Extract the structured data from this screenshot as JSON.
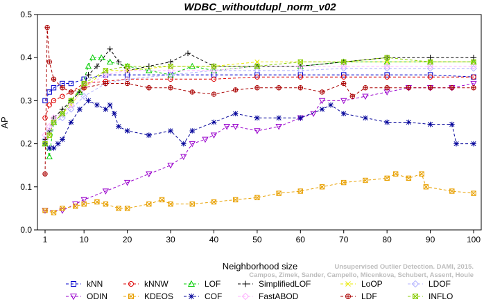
{
  "chart_data": {
    "type": "line",
    "title": "WDBC_withoutdupl_norm_v02",
    "xlabel": "Neighborhood size",
    "ylabel": "AP",
    "xlim": [
      1,
      100
    ],
    "ylim": [
      0,
      0.5
    ],
    "x_ticks": [
      1,
      10,
      20,
      30,
      40,
      50,
      60,
      70,
      80,
      90,
      100
    ],
    "y_ticks": [
      0.0,
      0.1,
      0.2,
      0.3,
      0.4,
      0.5
    ],
    "x_tick_labels": [
      "1",
      "10",
      "20",
      "30",
      "40",
      "50",
      "60",
      "70",
      "80",
      "90",
      "100"
    ],
    "y_tick_labels": [
      "0.0",
      "0.1",
      "0.2",
      "0.3",
      "0.4",
      "0.5"
    ],
    "grid": false,
    "legend_position": "bottom",
    "series": [
      {
        "name": "kNN",
        "color": "#0000cc",
        "marker": "square",
        "points": [
          [
            1,
            0.3
          ],
          [
            2,
            0.32
          ],
          [
            3,
            0.33
          ],
          [
            5,
            0.34
          ],
          [
            7,
            0.34
          ],
          [
            10,
            0.35
          ],
          [
            15,
            0.36
          ],
          [
            20,
            0.36
          ],
          [
            30,
            0.36
          ],
          [
            40,
            0.36
          ],
          [
            50,
            0.36
          ],
          [
            60,
            0.36
          ],
          [
            70,
            0.36
          ],
          [
            80,
            0.36
          ],
          [
            90,
            0.36
          ],
          [
            100,
            0.355
          ]
        ]
      },
      {
        "name": "kNNW",
        "color": "#dd0000",
        "marker": "circle",
        "points": [
          [
            1,
            0.26
          ],
          [
            2,
            0.29
          ],
          [
            3,
            0.3
          ],
          [
            5,
            0.31
          ],
          [
            7,
            0.32
          ],
          [
            10,
            0.34
          ],
          [
            15,
            0.345
          ],
          [
            20,
            0.35
          ],
          [
            30,
            0.35
          ],
          [
            40,
            0.35
          ],
          [
            50,
            0.355
          ],
          [
            60,
            0.355
          ],
          [
            70,
            0.355
          ],
          [
            80,
            0.355
          ],
          [
            90,
            0.355
          ],
          [
            100,
            0.355
          ]
        ]
      },
      {
        "name": "LOF",
        "color": "#00cc00",
        "marker": "triangle-up",
        "points": [
          [
            1,
            0.2
          ],
          [
            2,
            0.17
          ],
          [
            3,
            0.25
          ],
          [
            5,
            0.27
          ],
          [
            7,
            0.3
          ],
          [
            9,
            0.32
          ],
          [
            11,
            0.38
          ],
          [
            12,
            0.4
          ],
          [
            14,
            0.4
          ],
          [
            16,
            0.39
          ],
          [
            20,
            0.38
          ],
          [
            25,
            0.37
          ],
          [
            30,
            0.36
          ],
          [
            35,
            0.38
          ],
          [
            40,
            0.37
          ],
          [
            50,
            0.38
          ],
          [
            60,
            0.38
          ],
          [
            70,
            0.39
          ],
          [
            80,
            0.39
          ],
          [
            90,
            0.39
          ],
          [
            100,
            0.39
          ]
        ]
      },
      {
        "name": "SimplifiedLOF",
        "color": "#000000",
        "marker": "plus",
        "points": [
          [
            1,
            0.21
          ],
          [
            2,
            0.23
          ],
          [
            3,
            0.26
          ],
          [
            5,
            0.28
          ],
          [
            7,
            0.3
          ],
          [
            9,
            0.32
          ],
          [
            11,
            0.36
          ],
          [
            13,
            0.38
          ],
          [
            16,
            0.42
          ],
          [
            18,
            0.39
          ],
          [
            20,
            0.37
          ],
          [
            25,
            0.38
          ],
          [
            30,
            0.39
          ],
          [
            34,
            0.41
          ],
          [
            40,
            0.38
          ],
          [
            50,
            0.38
          ],
          [
            60,
            0.38
          ],
          [
            70,
            0.39
          ],
          [
            80,
            0.4
          ],
          [
            90,
            0.4
          ],
          [
            100,
            0.4
          ]
        ]
      },
      {
        "name": "LoOP",
        "color": "#e8e800",
        "marker": "cross",
        "points": [
          [
            1,
            0.2
          ],
          [
            2,
            0.22
          ],
          [
            3,
            0.25
          ],
          [
            5,
            0.27
          ],
          [
            7,
            0.29
          ],
          [
            10,
            0.33
          ],
          [
            15,
            0.37
          ],
          [
            20,
            0.37
          ],
          [
            30,
            0.38
          ],
          [
            40,
            0.38
          ],
          [
            50,
            0.39
          ],
          [
            60,
            0.39
          ],
          [
            70,
            0.39
          ],
          [
            80,
            0.39
          ],
          [
            90,
            0.39
          ],
          [
            100,
            0.39
          ]
        ]
      },
      {
        "name": "LDOF",
        "color": "#b0b0ff",
        "marker": "diamond",
        "points": [
          [
            1,
            0.21
          ],
          [
            2,
            0.23
          ],
          [
            3,
            0.25
          ],
          [
            5,
            0.26
          ],
          [
            7,
            0.28
          ],
          [
            10,
            0.31
          ],
          [
            15,
            0.34
          ],
          [
            20,
            0.35
          ],
          [
            30,
            0.36
          ],
          [
            40,
            0.37
          ],
          [
            50,
            0.37
          ],
          [
            60,
            0.37
          ],
          [
            70,
            0.375
          ],
          [
            80,
            0.375
          ],
          [
            90,
            0.375
          ],
          [
            100,
            0.375
          ]
        ]
      },
      {
        "name": "ODIN",
        "color": "#9900cc",
        "marker": "triangle-down",
        "points": [
          [
            1,
            0.045
          ],
          [
            5,
            0.045
          ],
          [
            8,
            0.06
          ],
          [
            10,
            0.07
          ],
          [
            15,
            0.09
          ],
          [
            20,
            0.11
          ],
          [
            25,
            0.13
          ],
          [
            30,
            0.15
          ],
          [
            33,
            0.17
          ],
          [
            35,
            0.2
          ],
          [
            38,
            0.21
          ],
          [
            40,
            0.22
          ],
          [
            43,
            0.24
          ],
          [
            45,
            0.24
          ],
          [
            50,
            0.23
          ],
          [
            55,
            0.24
          ],
          [
            60,
            0.26
          ],
          [
            63,
            0.27
          ],
          [
            65,
            0.3
          ],
          [
            70,
            0.3
          ],
          [
            75,
            0.31
          ],
          [
            80,
            0.32
          ],
          [
            85,
            0.33
          ],
          [
            90,
            0.33
          ],
          [
            95,
            0.33
          ],
          [
            100,
            0.34
          ]
        ]
      },
      {
        "name": "KDEOS",
        "color": "#e8a000",
        "marker": "square-x",
        "points": [
          [
            1,
            0.045
          ],
          [
            3,
            0.04
          ],
          [
            5,
            0.05
          ],
          [
            8,
            0.055
          ],
          [
            10,
            0.06
          ],
          [
            13,
            0.065
          ],
          [
            15,
            0.06
          ],
          [
            18,
            0.05
          ],
          [
            20,
            0.05
          ],
          [
            25,
            0.06
          ],
          [
            28,
            0.07
          ],
          [
            30,
            0.06
          ],
          [
            35,
            0.06
          ],
          [
            40,
            0.065
          ],
          [
            45,
            0.07
          ],
          [
            50,
            0.075
          ],
          [
            55,
            0.085
          ],
          [
            60,
            0.09
          ],
          [
            65,
            0.1
          ],
          [
            70,
            0.11
          ],
          [
            75,
            0.115
          ],
          [
            80,
            0.12
          ],
          [
            82,
            0.13
          ],
          [
            85,
            0.12
          ],
          [
            88,
            0.13
          ],
          [
            89,
            0.1
          ],
          [
            95,
            0.09
          ],
          [
            100,
            0.085
          ]
        ]
      },
      {
        "name": "COF",
        "color": "#000099",
        "marker": "star",
        "points": [
          [
            1,
            0.2
          ],
          [
            2,
            0.19
          ],
          [
            3,
            0.19
          ],
          [
            4,
            0.2
          ],
          [
            5,
            0.21
          ],
          [
            7,
            0.25
          ],
          [
            9,
            0.28
          ],
          [
            11,
            0.3
          ],
          [
            13,
            0.29
          ],
          [
            15,
            0.28
          ],
          [
            16,
            0.29
          ],
          [
            17,
            0.27
          ],
          [
            18,
            0.24
          ],
          [
            20,
            0.23
          ],
          [
            25,
            0.22
          ],
          [
            30,
            0.23
          ],
          [
            33,
            0.2
          ],
          [
            35,
            0.23
          ],
          [
            40,
            0.25
          ],
          [
            45,
            0.27
          ],
          [
            50,
            0.26
          ],
          [
            55,
            0.26
          ],
          [
            60,
            0.26
          ],
          [
            65,
            0.28
          ],
          [
            67,
            0.29
          ],
          [
            70,
            0.27
          ],
          [
            75,
            0.26
          ],
          [
            80,
            0.25
          ],
          [
            85,
            0.25
          ],
          [
            90,
            0.245
          ],
          [
            95,
            0.245
          ],
          [
            96,
            0.2
          ],
          [
            100,
            0.2
          ]
        ]
      },
      {
        "name": "FastABOD",
        "color": "#ffb0ff",
        "marker": "diamond",
        "points": [
          [
            1,
            0.22
          ],
          [
            2,
            0.24
          ],
          [
            3,
            0.26
          ],
          [
            5,
            0.27
          ],
          [
            7,
            0.29
          ],
          [
            10,
            0.33
          ],
          [
            15,
            0.36
          ],
          [
            20,
            0.37
          ],
          [
            30,
            0.37
          ],
          [
            40,
            0.37
          ],
          [
            50,
            0.38
          ],
          [
            60,
            0.38
          ],
          [
            70,
            0.38
          ],
          [
            80,
            0.38
          ],
          [
            90,
            0.38
          ],
          [
            100,
            0.38
          ]
        ]
      },
      {
        "name": "LDF",
        "color": "#aa0000",
        "marker": "circle-plus",
        "points": [
          [
            1,
            0.13
          ],
          [
            1.5,
            0.47
          ],
          [
            2,
            0.39
          ],
          [
            3,
            0.35
          ],
          [
            5,
            0.33
          ],
          [
            7,
            0.32
          ],
          [
            10,
            0.33
          ],
          [
            15,
            0.34
          ],
          [
            20,
            0.34
          ],
          [
            25,
            0.33
          ],
          [
            30,
            0.33
          ],
          [
            35,
            0.32
          ],
          [
            40,
            0.315
          ],
          [
            45,
            0.325
          ],
          [
            50,
            0.33
          ],
          [
            55,
            0.33
          ],
          [
            60,
            0.33
          ],
          [
            65,
            0.32
          ],
          [
            70,
            0.34
          ],
          [
            72,
            0.31
          ],
          [
            75,
            0.33
          ],
          [
            80,
            0.33
          ],
          [
            85,
            0.33
          ],
          [
            90,
            0.33
          ],
          [
            95,
            0.33
          ],
          [
            100,
            0.33
          ]
        ]
      },
      {
        "name": "INFLO",
        "color": "#88cc00",
        "marker": "square-x",
        "points": [
          [
            1,
            0.2
          ],
          [
            2,
            0.22
          ],
          [
            3,
            0.25
          ],
          [
            5,
            0.27
          ],
          [
            7,
            0.3
          ],
          [
            10,
            0.34
          ],
          [
            15,
            0.37
          ],
          [
            20,
            0.38
          ],
          [
            30,
            0.38
          ],
          [
            40,
            0.38
          ],
          [
            50,
            0.38
          ],
          [
            60,
            0.39
          ],
          [
            70,
            0.39
          ],
          [
            80,
            0.4
          ],
          [
            90,
            0.39
          ],
          [
            100,
            0.39
          ]
        ]
      }
    ]
  },
  "watermark": {
    "line1": "Unsupervised Outlier Detection. DAMI, 2015.",
    "line2": "Campos, Zimek, Sander, Campello, Micenkova, Schubert, Assent, Houle"
  }
}
